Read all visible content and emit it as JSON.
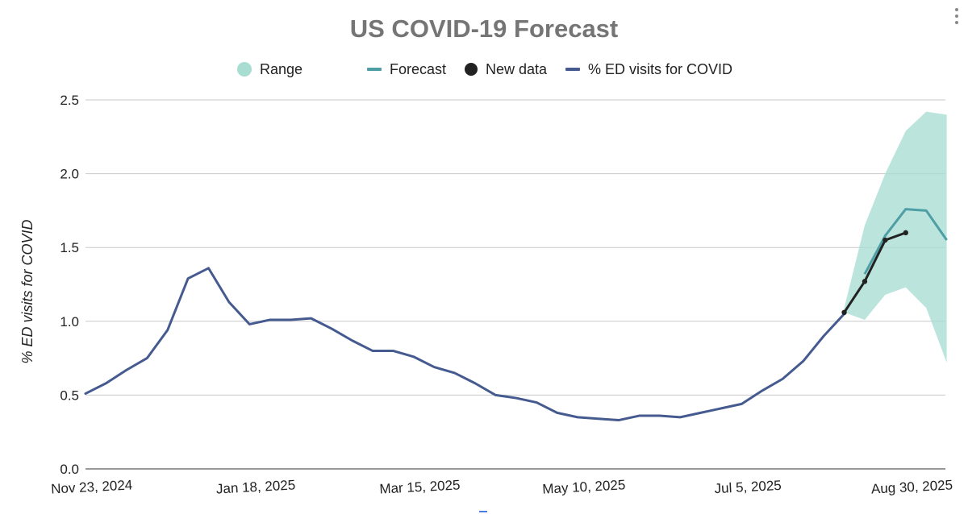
{
  "chart_data": {
    "type": "line",
    "title": "US COVID-19 Forecast",
    "xlabel": "",
    "ylabel": "% ED visits for COVID",
    "ylim": [
      0,
      2.5
    ],
    "yticks": [
      "0.0",
      "0.5",
      "1.0",
      "1.5",
      "2.0",
      "2.5"
    ],
    "xticks": [
      "Nov 23, 2024",
      "Jan 18, 2025",
      "Mar 15, 2025",
      "May 10, 2025",
      "Jul 5, 2025",
      "Aug 30, 2025"
    ],
    "legend": [
      {
        "name": "Range",
        "kind": "dot",
        "color": "#a8ddd2"
      },
      {
        "name": "Forecast",
        "kind": "line",
        "color": "#4e9ea6"
      },
      {
        "name": "New data",
        "kind": "dot",
        "color": "#222222"
      },
      {
        "name": "% ED visits for COVID",
        "kind": "line",
        "color": "#455a8f"
      }
    ],
    "series": [
      {
        "name": "% ED visits for COVID",
        "color": "#455a8f",
        "week_start": 0,
        "values": [
          0.51,
          0.58,
          0.67,
          0.75,
          0.94,
          1.29,
          1.36,
          1.13,
          0.98,
          1.01,
          1.01,
          1.02,
          0.95,
          0.87,
          0.8,
          0.8,
          0.76,
          0.69,
          0.65,
          0.58,
          0.5,
          0.48,
          0.45,
          0.38,
          0.35,
          0.34,
          0.33,
          0.36,
          0.36,
          0.35,
          0.38,
          0.41,
          0.44,
          0.53,
          0.61,
          0.73,
          0.9,
          1.05
        ]
      },
      {
        "name": "New data",
        "color": "#222222",
        "week_start": 37,
        "values": [
          1.06,
          1.27,
          1.55,
          1.6
        ]
      },
      {
        "name": "Forecast",
        "color": "#4e9ea6",
        "week_start": 38,
        "values": [
          1.32,
          1.58,
          1.76,
          1.75,
          1.55
        ]
      },
      {
        "name": "Range",
        "color": "#a8ddd2",
        "week_start": 37,
        "upper": [
          1.09,
          1.65,
          2.0,
          2.29,
          2.42,
          2.4
        ],
        "lower": [
          1.06,
          1.01,
          1.18,
          1.23,
          1.09,
          0.72
        ]
      }
    ]
  }
}
